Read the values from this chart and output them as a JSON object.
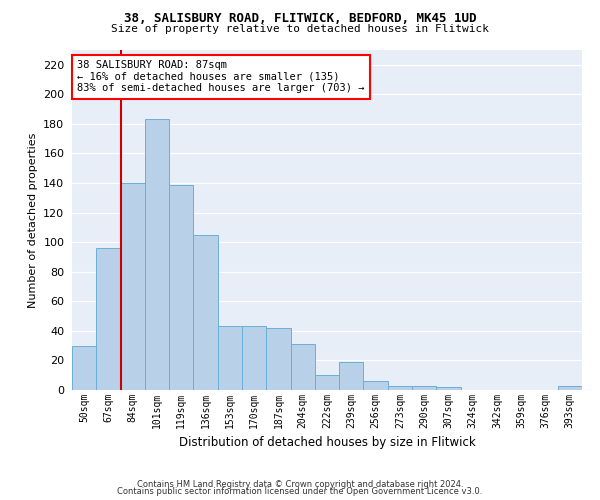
{
  "title_line1": "38, SALISBURY ROAD, FLITWICK, BEDFORD, MK45 1UD",
  "title_line2": "Size of property relative to detached houses in Flitwick",
  "xlabel": "Distribution of detached houses by size in Flitwick",
  "ylabel": "Number of detached properties",
  "bar_labels": [
    "50sqm",
    "67sqm",
    "84sqm",
    "101sqm",
    "119sqm",
    "136sqm",
    "153sqm",
    "170sqm",
    "187sqm",
    "204sqm",
    "222sqm",
    "239sqm",
    "256sqm",
    "273sqm",
    "290sqm",
    "307sqm",
    "324sqm",
    "342sqm",
    "359sqm",
    "376sqm",
    "393sqm"
  ],
  "bar_values": [
    30,
    96,
    140,
    183,
    139,
    105,
    43,
    43,
    42,
    31,
    10,
    19,
    6,
    3,
    3,
    2,
    0,
    0,
    0,
    0,
    3
  ],
  "bar_color": "#b8d0e8",
  "bar_edge_color": "#6aaed6",
  "annotation_text": "38 SALISBURY ROAD: 87sqm\n← 16% of detached houses are smaller (135)\n83% of semi-detached houses are larger (703) →",
  "annotation_box_color": "white",
  "annotation_box_edge_color": "red",
  "vline_color": "#cc0000",
  "vline_x_index": 2,
  "ylim": [
    0,
    230
  ],
  "yticks": [
    0,
    20,
    40,
    60,
    80,
    100,
    120,
    140,
    160,
    180,
    200,
    220
  ],
  "bg_color": "#e8eef8",
  "grid_color": "#ffffff",
  "footer_line1": "Contains HM Land Registry data © Crown copyright and database right 2024.",
  "footer_line2": "Contains public sector information licensed under the Open Government Licence v3.0."
}
